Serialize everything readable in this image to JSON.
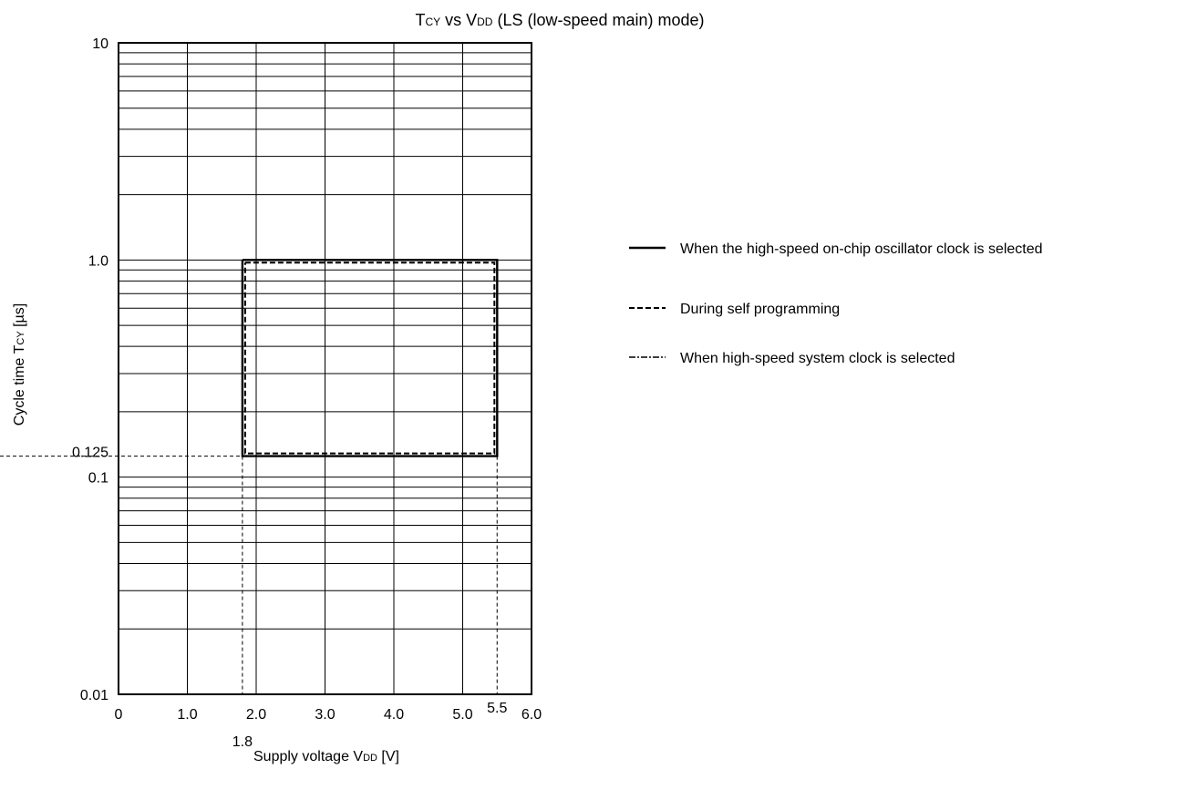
{
  "chart_data": {
    "type": "line",
    "title": {
      "parts": [
        {
          "text": "T",
          "sub": false
        },
        {
          "text": "CY",
          "sub": true
        },
        {
          "text": " vs V",
          "sub": false
        },
        {
          "text": "DD",
          "sub": true
        },
        {
          "text": " (LS (low-speed main) mode)",
          "sub": false
        }
      ]
    },
    "xlabel": {
      "parts": [
        {
          "text": "Supply voltage V",
          "sub": false
        },
        {
          "text": "DD",
          "sub": true
        },
        {
          "text": " [V]",
          "sub": false
        }
      ]
    },
    "ylabel": {
      "parts": [
        {
          "text": "Cycle time T",
          "sub": false
        },
        {
          "text": "CY",
          "sub": true
        },
        {
          "text": " [µs]",
          "sub": false
        }
      ]
    },
    "x_scale": "linear",
    "y_scale": "log",
    "xlim": [
      0,
      6.0
    ],
    "ylim": [
      0.01,
      10
    ],
    "grid": true,
    "x_ticks": [
      {
        "value": 0,
        "label": "0"
      },
      {
        "value": 1,
        "label": "1.0"
      },
      {
        "value": 2,
        "label": "2.0"
      },
      {
        "value": 3,
        "label": "3.0"
      },
      {
        "value": 4,
        "label": "4.0"
      },
      {
        "value": 5,
        "label": "5.0"
      },
      {
        "value": 6,
        "label": "6.0"
      }
    ],
    "y_ticks": [
      {
        "value": 0.01,
        "label": "0.01"
      },
      {
        "value": 0.1,
        "label": "0.1"
      },
      {
        "value": 1,
        "label": "1.0"
      },
      {
        "value": 10,
        "label": "10"
      }
    ],
    "annotations": [
      {
        "axis": "x",
        "value": 1.8,
        "label": "1.8"
      },
      {
        "axis": "x",
        "value": 5.5,
        "label": "5.5"
      },
      {
        "axis": "y",
        "value": 0.125,
        "label": "0.125"
      }
    ],
    "legend_position": "right",
    "series": [
      {
        "name": "When the high-speed on-chip oscillator clock is selected",
        "style": "solid",
        "x": [
          1.8,
          5.5,
          5.5,
          1.8,
          1.8
        ],
        "y": [
          1.0,
          1.0,
          0.125,
          0.125,
          1.0
        ]
      },
      {
        "name": "During self programming",
        "style": "dashed",
        "x": [
          1.8,
          5.5,
          5.5,
          1.8,
          1.8
        ],
        "y": [
          1.0,
          1.0,
          0.125,
          0.125,
          1.0
        ]
      },
      {
        "name": "When high-speed system clock is selected",
        "style": "dashdot",
        "x": [
          1.8,
          5.5,
          5.5,
          1.8,
          1.8
        ],
        "y": [
          1.0,
          1.0,
          0.125,
          0.125,
          1.0
        ]
      }
    ]
  }
}
